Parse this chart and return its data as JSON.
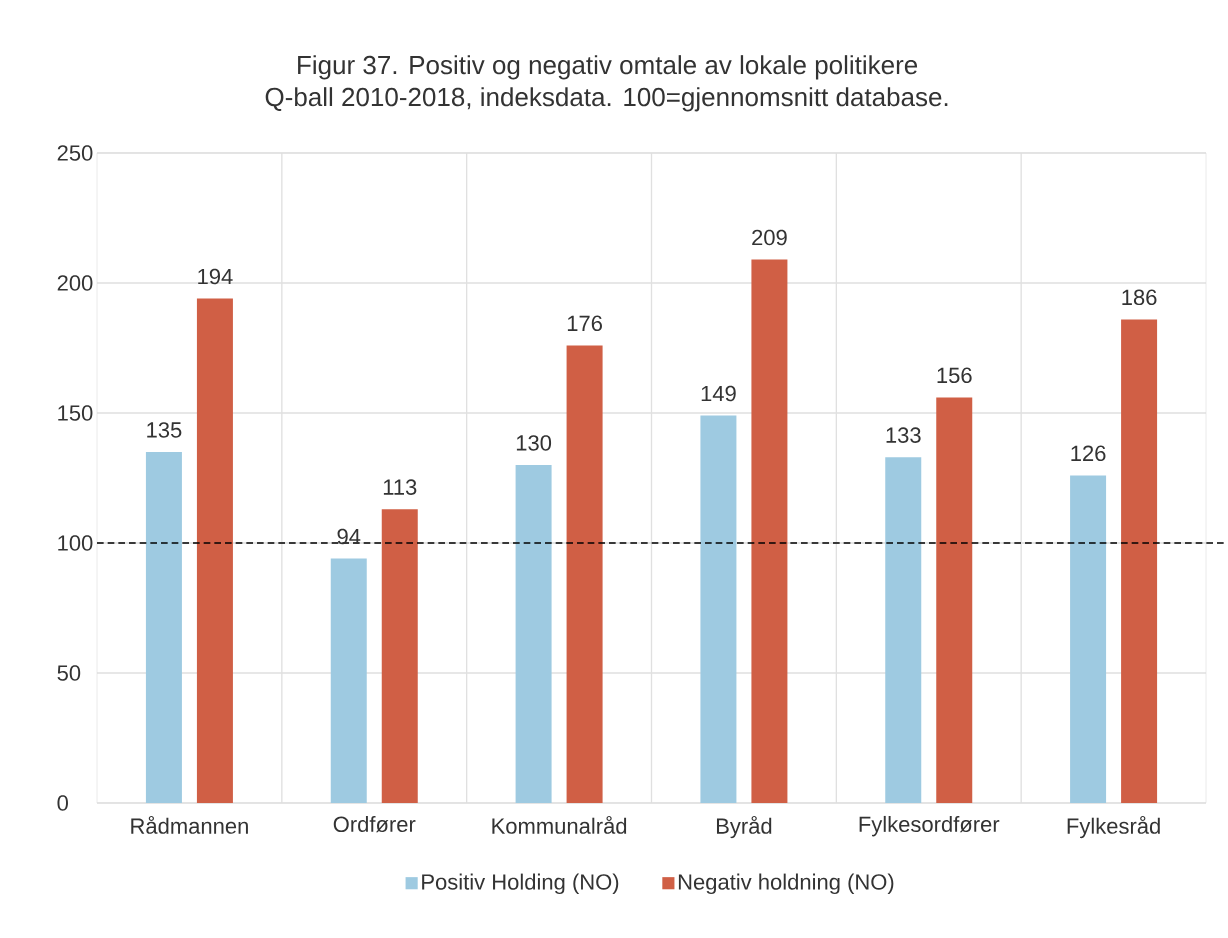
{
  "chart_data": {
    "type": "bar",
    "title": "Figur 37. Positiv og negativ omtale av lokale politikere",
    "subtitle": "Q-ball 2010-2018, indeksdata. 100=gjennomsnitt database.",
    "categories": [
      "Rådmannen",
      "Ordfører",
      "Kommunalråd",
      "Byråd",
      "Fylkesordfører",
      "Fylkesråd"
    ],
    "series": [
      {
        "name": "Positiv Holding (NO)",
        "color": "#9ecae1",
        "values": [
          135,
          94,
          130,
          149,
          133,
          126
        ]
      },
      {
        "name": "Negativ holdning (NO)",
        "color": "#d05f45",
        "values": [
          194,
          113,
          176,
          209,
          156,
          186
        ]
      }
    ],
    "ylim": [
      0,
      250
    ],
    "yticks": [
      0,
      50,
      100,
      150,
      200,
      250
    ],
    "grid": true,
    "legend": "bottom",
    "data_labels": true,
    "ref_lines": [
      {
        "axis": "y",
        "value": 100,
        "line_style": "dashed",
        "color": "#000000"
      }
    ]
  }
}
